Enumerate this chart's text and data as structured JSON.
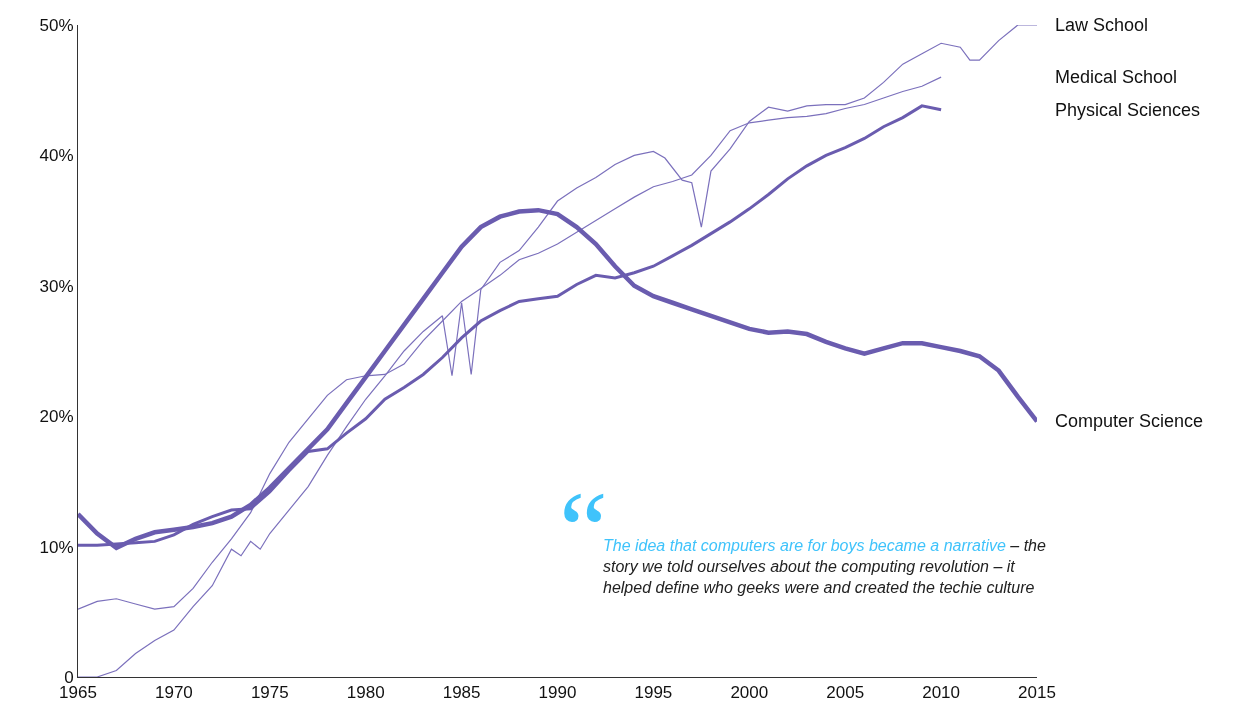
{
  "chart_data": {
    "type": "line",
    "xlim": [
      1965,
      2015
    ],
    "xticks": [
      1965,
      1970,
      1975,
      1980,
      1985,
      1990,
      1995,
      2000,
      2005,
      2010,
      2015
    ],
    "ylim": [
      0,
      50
    ],
    "yticks": [
      0,
      {
        "value": 10,
        "label": "10%"
      },
      {
        "value": 20,
        "label": "20%"
      },
      {
        "value": 30,
        "label": "30%"
      },
      {
        "value": 40,
        "label": "40%"
      },
      {
        "value": 50,
        "label": "50%"
      }
    ],
    "legend": false,
    "marker": "none",
    "line_style": "solid",
    "series": [
      {
        "name": "Law School",
        "color": "#7b70bc",
        "x": [
          1965,
          1966,
          1967,
          1968,
          1969,
          1970,
          1971,
          1972,
          1973,
          1973.5,
          1974,
          1974.5,
          1975,
          1976,
          1977,
          1978,
          1979,
          1980,
          1981,
          1982,
          1983,
          1984,
          1984.5,
          1985,
          1985.5,
          1986,
          1987,
          1988,
          1989,
          1990,
          1991,
          1992,
          1993,
          1994,
          1995,
          1995.6,
          1996.5,
          1997,
          1997.5,
          1998,
          1999,
          2000,
          2001,
          2002,
          2003,
          2004,
          2005,
          2006,
          2007,
          2008,
          2009,
          2010,
          2011,
          2011.5,
          2012,
          2013,
          2014,
          2015
        ],
        "values": [
          0,
          0,
          0.5,
          1.8,
          2.8,
          3.6,
          5.4,
          7.0,
          9.8,
          9.3,
          10.4,
          9.8,
          11.0,
          12.8,
          14.6,
          17.0,
          19.2,
          21.3,
          23.1,
          25.0,
          26.5,
          27.7,
          23.1,
          28.7,
          23.2,
          29.7,
          31.8,
          32.7,
          34.5,
          36.5,
          37.5,
          38.3,
          39.3,
          40.0,
          40.3,
          39.8,
          38.1,
          37.9,
          34.5,
          38.8,
          40.5,
          42.6,
          43.7,
          43.4,
          43.8,
          43.9,
          43.9,
          44.4,
          45.6,
          47.0,
          47.8,
          48.6,
          48.3,
          47.3,
          47.3,
          48.8,
          50.0,
          50.0
        ]
      },
      {
        "name": "Medical School",
        "color": "#7b70bc",
        "x": [
          1965,
          1966,
          1967,
          1968,
          1969,
          1970,
          1971,
          1972,
          1973,
          1974,
          1975,
          1976,
          1977,
          1978,
          1979,
          1980,
          1981,
          1982,
          1983,
          1984,
          1985,
          1986,
          1987,
          1988,
          1989,
          1990,
          1991,
          1992,
          1993,
          1994,
          1995,
          1996,
          1997,
          1998,
          1999,
          2000,
          2001,
          2002,
          2003,
          2004,
          2005,
          2006,
          2007,
          2008,
          2009,
          2010
        ],
        "values": [
          5.2,
          5.8,
          6.0,
          5.6,
          5.2,
          5.4,
          6.8,
          8.8,
          10.6,
          12.6,
          15.6,
          18.0,
          19.8,
          21.6,
          22.8,
          23.1,
          23.2,
          24.0,
          25.8,
          27.3,
          28.8,
          29.8,
          30.8,
          32.0,
          32.5,
          33.2,
          34.1,
          35.0,
          35.9,
          36.8,
          37.6,
          38.0,
          38.5,
          40.0,
          41.9,
          42.5,
          42.7,
          42.9,
          43.0,
          43.2,
          43.6,
          43.9,
          44.4,
          44.9,
          45.3,
          46.0
        ]
      },
      {
        "name": "Physical Sciences",
        "color": "#6a5caf",
        "x": [
          1965,
          1966,
          1967,
          1968,
          1969,
          1970,
          1971,
          1972,
          1973,
          1974,
          1975,
          1976,
          1977,
          1978,
          1979,
          1980,
          1981,
          1982,
          1983,
          1984,
          1985,
          1986,
          1987,
          1988,
          1989,
          1990,
          1991,
          1992,
          1993,
          1994,
          1995,
          1996,
          1997,
          1998,
          1999,
          2000,
          2001,
          2002,
          2003,
          2004,
          2005,
          2006,
          2007,
          2008,
          2009,
          2010
        ],
        "values": [
          10.1,
          10.1,
          10.2,
          10.3,
          10.4,
          10.9,
          11.7,
          12.3,
          12.8,
          12.9,
          14.2,
          15.8,
          17.3,
          17.5,
          18.7,
          19.8,
          21.3,
          22.2,
          23.2,
          24.5,
          26.0,
          27.3,
          28.1,
          28.8,
          29.0,
          29.2,
          30.1,
          30.8,
          30.6,
          31.0,
          31.5,
          32.3,
          33.1,
          34.0,
          34.9,
          35.9,
          37.0,
          38.2,
          39.2,
          40.0,
          40.6,
          41.3,
          42.2,
          42.9,
          43.8,
          43.5
        ]
      },
      {
        "name": "Computer Science",
        "color": "#6a5caf",
        "x": [
          1965,
          1966,
          1967,
          1968,
          1969,
          1970,
          1971,
          1972,
          1973,
          1974,
          1975,
          1976,
          1977,
          1978,
          1979,
          1980,
          1981,
          1982,
          1983,
          1984,
          1985,
          1986,
          1987,
          1988,
          1989,
          1990,
          1991,
          1992,
          1993,
          1994,
          1995,
          1996,
          1997,
          1998,
          1999,
          2000,
          2001,
          2002,
          2003,
          2004,
          2005,
          2006,
          2007,
          2008,
          2009,
          2010,
          2011,
          2012,
          2013,
          2014,
          2015
        ],
        "values": [
          12.5,
          11.0,
          9.9,
          10.6,
          11.1,
          11.3,
          11.5,
          11.8,
          12.3,
          13.2,
          14.5,
          16.0,
          17.5,
          19.0,
          21.0,
          23.0,
          25.0,
          27.0,
          29.0,
          31.0,
          33.0,
          34.5,
          35.3,
          35.7,
          35.8,
          35.5,
          34.5,
          33.2,
          31.5,
          30.0,
          29.2,
          28.7,
          28.2,
          27.7,
          27.2,
          26.7,
          26.4,
          26.5,
          26.3,
          25.7,
          25.2,
          24.8,
          25.2,
          25.6,
          25.6,
          25.3,
          25.0,
          24.6,
          23.5,
          21.5,
          19.6
        ]
      }
    ],
    "annotations": [
      "“",
      "The idea that computers are for boys became a narrative",
      "– the story we told ourselves about the computing revolution – it helped define who geeks were and created the techie culture"
    ]
  }
}
